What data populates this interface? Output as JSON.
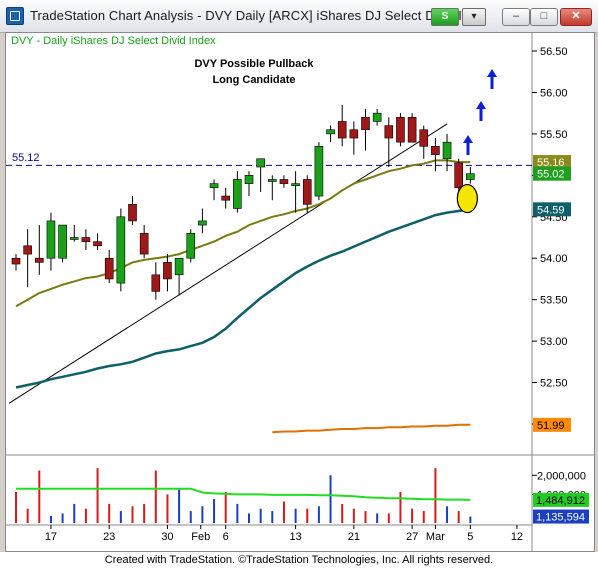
{
  "window": {
    "title": "TradeStation Chart Analysis - DVY Daily [ARCX] iShares DJ Select Divid I...",
    "symbol_button_label": "S",
    "menu_button_label": "▾",
    "minimize_label": "–",
    "maximize_label": "□",
    "close_label": "✕",
    "icon": "tradestation-app-icon"
  },
  "chart": {
    "symbol_label": "DVY - Daily iShares DJ Select Divid Index",
    "annotation_line1": "DVY Possible Pullback",
    "annotation_line2": "Long Candidate",
    "horizontal_line_label": "55.12",
    "colors": {
      "up_candle": "#1aa11a",
      "down_candle": "#a01818",
      "ma_olive": "#7a7a10",
      "ma_teal": "#0f5f6b",
      "ma_orange": "#e07000",
      "trendline": "#000000",
      "dashed_line": "#0b0b8a",
      "arrows": "#0a1fd8",
      "highlight_fill": "#f5e600",
      "volume_up": "#1a3fbf",
      "volume_down": "#d61b1b",
      "volume_avg": "#22dd22"
    },
    "price_axis_labels": [
      "56.50",
      "56.00",
      "55.50",
      "55.00",
      "54.50",
      "54.00",
      "53.50",
      "53.00",
      "52.50",
      "52.00"
    ],
    "price_tags": [
      {
        "label": "55.16",
        "bg": "#8b8b1c",
        "fg": "#ffffff"
      },
      {
        "label": "55.02",
        "bg": "#1f9f1f",
        "fg": "#ffffff"
      },
      {
        "label": "54.59",
        "bg": "#0f5f6b",
        "fg": "#ffffff"
      },
      {
        "label": "51.99",
        "bg": "#ff8a00",
        "fg": "#000000"
      }
    ],
    "volume_axis_labels": [
      "2,000,000",
      "1,600,000"
    ],
    "volume_tags": [
      {
        "label": "1,484,912",
        "bg": "#22cc22",
        "fg": "#000000"
      },
      {
        "label": "1,135,594",
        "bg": "#1a3fbf",
        "fg": "#ffffff"
      }
    ],
    "date_labels": [
      "17",
      "23",
      "30",
      "Feb",
      "6",
      "13",
      "21",
      "27",
      "Mar",
      "5",
      "12"
    ]
  },
  "chart_data": {
    "type": "candlestick",
    "title": "DVY Possible Pullback Long Candidate",
    "ylim": [
      51.8,
      56.7
    ],
    "reference_line": 55.12,
    "candles": [
      {
        "o": 54.0,
        "h": 54.05,
        "l": 53.85,
        "c": 53.93
      },
      {
        "o": 54.15,
        "h": 54.35,
        "l": 53.65,
        "c": 54.05
      },
      {
        "o": 54.0,
        "h": 54.4,
        "l": 53.8,
        "c": 53.95
      },
      {
        "o": 54.0,
        "h": 54.55,
        "l": 53.85,
        "c": 54.45
      },
      {
        "o": 54.0,
        "h": 54.4,
        "l": 53.95,
        "c": 54.4
      },
      {
        "o": 54.25,
        "h": 54.4,
        "l": 54.2,
        "c": 54.25
      },
      {
        "o": 54.25,
        "h": 54.35,
        "l": 54.1,
        "c": 54.2
      },
      {
        "o": 54.2,
        "h": 54.3,
        "l": 54.1,
        "c": 54.15
      },
      {
        "o": 54.0,
        "h": 54.1,
        "l": 53.7,
        "c": 53.75
      },
      {
        "o": 53.7,
        "h": 54.6,
        "l": 53.6,
        "c": 54.5
      },
      {
        "o": 54.65,
        "h": 54.75,
        "l": 54.4,
        "c": 54.45
      },
      {
        "o": 54.3,
        "h": 54.4,
        "l": 54.0,
        "c": 54.05
      },
      {
        "o": 53.8,
        "h": 53.95,
        "l": 53.5,
        "c": 53.6
      },
      {
        "o": 53.95,
        "h": 54.05,
        "l": 53.6,
        "c": 53.75
      },
      {
        "o": 53.8,
        "h": 54.0,
        "l": 53.55,
        "c": 54.0
      },
      {
        "o": 54.0,
        "h": 54.35,
        "l": 53.95,
        "c": 54.3
      },
      {
        "o": 54.4,
        "h": 54.6,
        "l": 54.3,
        "c": 54.45
      },
      {
        "o": 54.85,
        "h": 54.95,
        "l": 54.7,
        "c": 54.9
      },
      {
        "o": 54.75,
        "h": 54.85,
        "l": 54.6,
        "c": 54.7
      },
      {
        "o": 54.6,
        "h": 55.05,
        "l": 54.55,
        "c": 54.95
      },
      {
        "o": 54.9,
        "h": 55.05,
        "l": 54.75,
        "c": 55.0
      },
      {
        "o": 55.1,
        "h": 55.2,
        "l": 54.8,
        "c": 55.2
      },
      {
        "o": 54.95,
        "h": 55.0,
        "l": 54.7,
        "c": 54.95
      },
      {
        "o": 54.95,
        "h": 55.0,
        "l": 54.85,
        "c": 54.9
      },
      {
        "o": 54.9,
        "h": 55.05,
        "l": 54.55,
        "c": 54.9
      },
      {
        "o": 54.95,
        "h": 55.0,
        "l": 54.55,
        "c": 54.65
      },
      {
        "o": 54.75,
        "h": 55.4,
        "l": 54.7,
        "c": 55.35
      },
      {
        "o": 55.5,
        "h": 55.6,
        "l": 55.4,
        "c": 55.55
      },
      {
        "o": 55.65,
        "h": 55.85,
        "l": 55.35,
        "c": 55.45
      },
      {
        "o": 55.55,
        "h": 55.65,
        "l": 55.25,
        "c": 55.45
      },
      {
        "o": 55.7,
        "h": 55.8,
        "l": 55.3,
        "c": 55.55
      },
      {
        "o": 55.65,
        "h": 55.8,
        "l": 55.6,
        "c": 55.75
      },
      {
        "o": 55.6,
        "h": 55.7,
        "l": 55.1,
        "c": 55.45
      },
      {
        "o": 55.7,
        "h": 55.75,
        "l": 55.35,
        "c": 55.4
      },
      {
        "o": 55.7,
        "h": 55.75,
        "l": 55.4,
        "c": 55.4
      },
      {
        "o": 55.55,
        "h": 55.6,
        "l": 55.2,
        "c": 55.35
      },
      {
        "o": 55.35,
        "h": 55.45,
        "l": 55.05,
        "c": 55.25
      },
      {
        "o": 55.2,
        "h": 55.5,
        "l": 55.05,
        "c": 55.4
      },
      {
        "o": 55.15,
        "h": 55.2,
        "l": 54.75,
        "c": 54.85
      },
      {
        "o": 54.95,
        "h": 55.1,
        "l": 54.9,
        "c": 55.02
      }
    ],
    "ma_olive": [
      53.42,
      53.5,
      53.58,
      53.63,
      53.68,
      53.72,
      53.76,
      53.78,
      53.82,
      53.88,
      53.95,
      53.98,
      54.0,
      54.02,
      54.05,
      54.1,
      54.15,
      54.2,
      54.27,
      54.32,
      54.4,
      54.45,
      54.5,
      54.53,
      54.57,
      54.6,
      54.65,
      54.72,
      54.82,
      54.9,
      54.95,
      55.0,
      55.05,
      55.08,
      55.12,
      55.14,
      55.18,
      55.18,
      55.16,
      55.16
    ],
    "ma_teal": [
      52.44,
      52.47,
      52.5,
      52.54,
      52.57,
      52.6,
      52.63,
      52.67,
      52.7,
      52.72,
      52.75,
      52.8,
      52.85,
      52.88,
      52.9,
      52.94,
      52.98,
      53.05,
      53.15,
      53.28,
      53.4,
      53.52,
      53.62,
      53.72,
      53.82,
      53.9,
      53.97,
      54.03,
      54.08,
      54.14,
      54.2,
      54.26,
      54.32,
      54.37,
      54.42,
      54.47,
      54.52,
      54.55,
      54.57,
      54.59
    ],
    "ma_orange_start_index": 22,
    "ma_orange": [
      51.9,
      51.91,
      51.91,
      51.92,
      51.92,
      51.93,
      51.94,
      51.94,
      51.95,
      51.95,
      51.96,
      51.96,
      51.97,
      51.97,
      51.98,
      51.98,
      51.99,
      51.99
    ],
    "volume": [
      1650000,
      1300000,
      2100000,
      1150000,
      1200000,
      1400000,
      1300000,
      2150000,
      1400000,
      1250000,
      1350000,
      1400000,
      2100000,
      1600000,
      1700000,
      1250000,
      1350000,
      1500000,
      1650000,
      1400000,
      1200000,
      1300000,
      1250000,
      1450000,
      1300000,
      1300000,
      1350000,
      2000000,
      1400000,
      1300000,
      1250000,
      1200000,
      1200000,
      1650000,
      1300000,
      1250000,
      2150000,
      1350000,
      1250000,
      1135594
    ],
    "volume_avg": [
      1720000,
      1720000,
      1720000,
      1720000,
      1720000,
      1720000,
      1720000,
      1720000,
      1720000,
      1720000,
      1720000,
      1720000,
      1720000,
      1720000,
      1720000,
      1720000,
      1640000,
      1620000,
      1610000,
      1600000,
      1600000,
      1600000,
      1590000,
      1590000,
      1590000,
      1590000,
      1580000,
      1580000,
      1570000,
      1560000,
      1540000,
      1530000,
      1520000,
      1520000,
      1510000,
      1500000,
      1500000,
      1490000,
      1490000,
      1484912
    ],
    "volume_ylim": [
      1000000,
      2300000
    ]
  },
  "caption": "Created with TradeStation. ©TradeStation Technologies, Inc. All rights reserved."
}
